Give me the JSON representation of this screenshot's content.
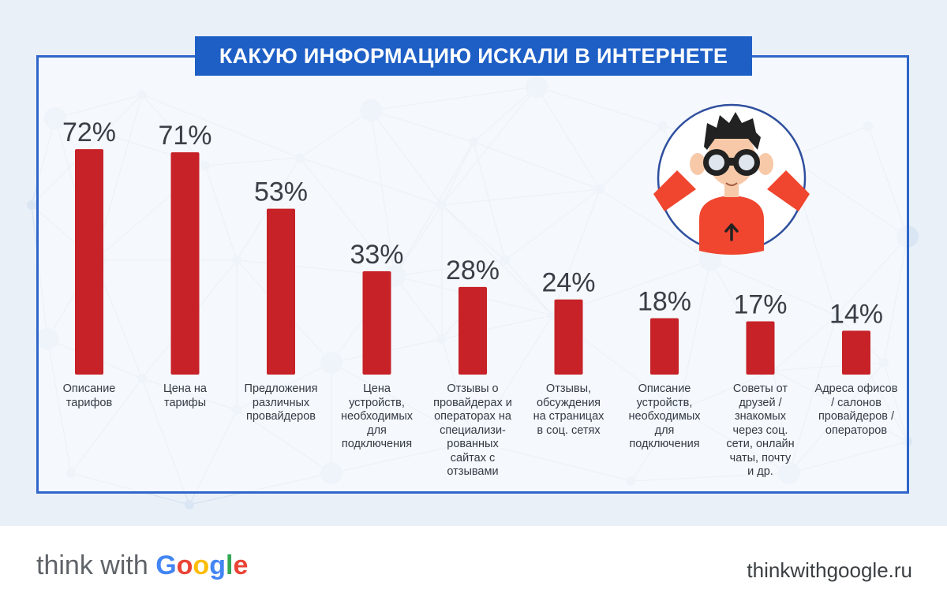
{
  "title": "КАКУЮ ИНФОРМАЦИЮ ИСКАЛИ В ИНТЕРНЕТЕ",
  "chart_data": {
    "type": "bar",
    "categories": [
      [
        "Описание",
        "тарифов"
      ],
      [
        "Цена на",
        "тарифы"
      ],
      [
        "Предложения",
        "различных",
        "провайдеров"
      ],
      [
        "Цена",
        "устройств,",
        "необходимых",
        "для",
        "подключения"
      ],
      [
        "Отзывы о",
        "провайдерах и",
        "операторах на",
        "специализи-",
        "рованных",
        "сайтах с",
        "отзывами"
      ],
      [
        "Отзывы,",
        "обсуждения",
        "на страницах",
        "в соц. сетях"
      ],
      [
        "Описание",
        "устройств,",
        "необходимых",
        "для",
        "подключения"
      ],
      [
        "Советы от",
        "друзей /",
        "знакомых",
        "через соц.",
        "сети, онлайн",
        "чаты, почту",
        "и др."
      ],
      [
        "Адреса офисов",
        "/ салонов",
        "провайдеров /",
        "операторов"
      ]
    ],
    "values": [
      72,
      71,
      53,
      33,
      28,
      24,
      18,
      17,
      14
    ],
    "value_labels": [
      "72%",
      "71%",
      "53%",
      "33%",
      "28%",
      "24%",
      "18%",
      "17%",
      "14%"
    ],
    "bar_color": "#c62228",
    "ylim": [
      0,
      100
    ]
  },
  "footer": {
    "brand_think": "think with ",
    "brand_google": [
      "G",
      "o",
      "o",
      "g",
      "l",
      "e"
    ],
    "site": "thinkwithgoogle.ru"
  },
  "colors": {
    "title_bg": "#1e5fc6",
    "frame": "#2f66c9",
    "background": "#e9f0f8"
  },
  "illustration": "person-with-binoculars-icon"
}
